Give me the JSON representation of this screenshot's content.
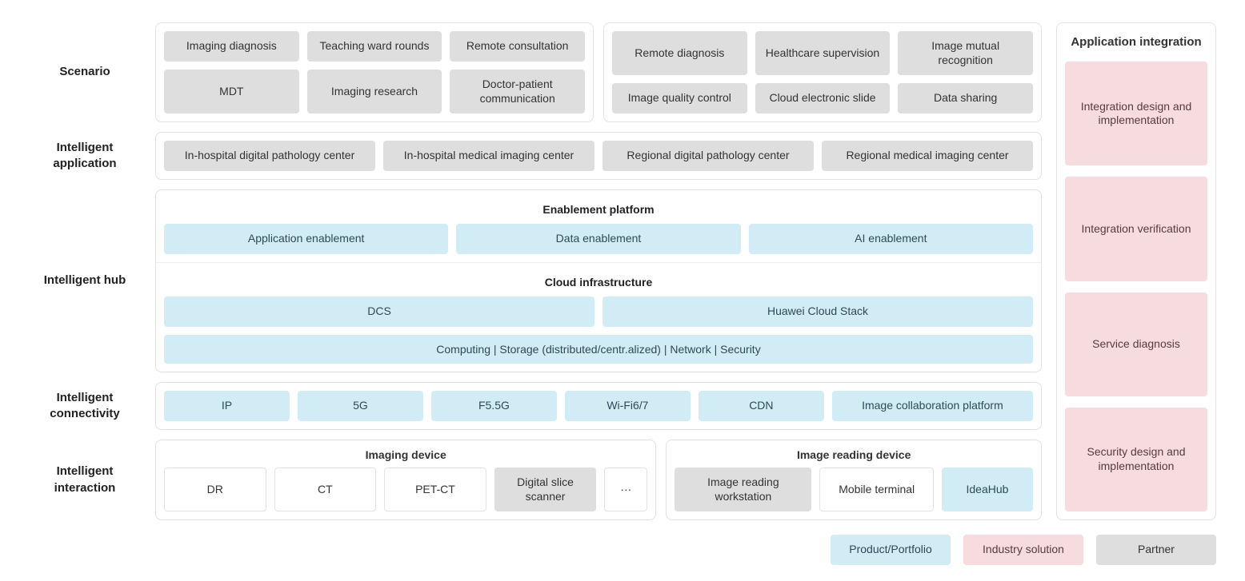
{
  "colors": {
    "gray": "#dedede",
    "blue": "#d2ecf6",
    "pink": "#f6dcdf",
    "white": "#ffffff",
    "border": "#e3e3e3"
  },
  "rows": {
    "scenario": {
      "label": "Scenario",
      "left": [
        "Imaging diagnosis",
        "Teaching ward rounds",
        "Remote consultation",
        "MDT",
        "Imaging research",
        "Doctor-patient communication"
      ],
      "right": [
        "Remote diagnosis",
        "Healthcare supervision",
        "Image mutual recognition",
        "Image quality control",
        "Cloud electronic slide",
        "Data sharing"
      ]
    },
    "application": {
      "label": "Intelligent application",
      "items": [
        "In-hospital digital pathology center",
        "In-hospital medical imaging center",
        "Regional digital pathology center",
        "Regional medical imaging center"
      ]
    },
    "hub": {
      "label": "Intelligent hub",
      "enablement_title": "Enablement platform",
      "enablement_items": [
        "Application enablement",
        "Data enablement",
        "AI enablement"
      ],
      "cloud_title": "Cloud infrastructure",
      "cloud_items": [
        "DCS",
        "Huawei Cloud Stack"
      ],
      "cloud_bar": "Computing  |  Storage (distributed/centr.alized)  |  Network  |  Security"
    },
    "connectivity": {
      "label": "Intelligent connectivity",
      "items": [
        "IP",
        "5G",
        "F5.5G",
        "Wi-Fi6/7",
        "CDN",
        "Image collaboration platform"
      ]
    },
    "interaction": {
      "label": "Intelligent interaction",
      "imaging_title": "Imaging device",
      "imaging_items": [
        {
          "label": "DR",
          "style": "white"
        },
        {
          "label": "CT",
          "style": "white"
        },
        {
          "label": "PET-CT",
          "style": "white"
        },
        {
          "label": "Digital slice scanner",
          "style": "gray"
        },
        {
          "label": "···",
          "style": "white"
        }
      ],
      "reading_title": "Image reading device",
      "reading_items": [
        {
          "label": "Image reading workstation",
          "style": "gray"
        },
        {
          "label": "Mobile terminal",
          "style": "white"
        },
        {
          "label": "IdeaHub",
          "style": "blue"
        }
      ]
    }
  },
  "appint": {
    "title": "Application integration",
    "items": [
      "Integration design and implementation",
      "Integration verification",
      "Service diagnosis",
      "Security design and implementation"
    ]
  },
  "legend": {
    "product": "Product/Portfolio",
    "solution": "Industry solution",
    "partner": "Partner"
  }
}
